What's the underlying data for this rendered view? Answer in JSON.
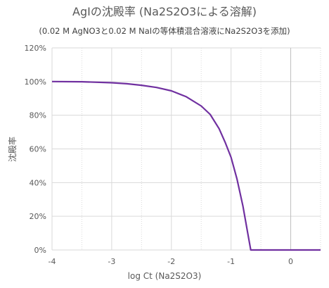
{
  "chart_data": {
    "type": "line",
    "title": "AgIの沈殿率 (Na2S2O3による溶解)",
    "subtitle": "(0.02 M AgNO3と0.02 M NaIの等体積混合溶液にNa2S2O3を添加)",
    "xlabel": "log Ct (Na2S2O3)",
    "ylabel": "沈殿率",
    "xlim": [
      -4,
      0.5
    ],
    "ylim": [
      0,
      120
    ],
    "x_ticks": [
      -4,
      -3,
      -2,
      -1,
      0
    ],
    "x_tick_labels": [
      "-4",
      "-3",
      "-2",
      "-1",
      "0"
    ],
    "y_ticks": [
      0,
      20,
      40,
      60,
      80,
      100,
      120
    ],
    "y_tick_labels": [
      "0%",
      "20%",
      "40%",
      "60%",
      "80%",
      "100%",
      "120%"
    ],
    "grid": true,
    "legend": "none",
    "series": [
      {
        "color": "#7030a0",
        "x": [
          -4.0,
          -3.5,
          -3.0,
          -2.75,
          -2.5,
          -2.25,
          -2.0,
          -1.75,
          -1.5,
          -1.35,
          -1.2,
          -1.1,
          -1.0,
          -0.9,
          -0.8,
          -0.72,
          -0.67,
          -0.5,
          -0.25,
          0.0,
          0.25,
          0.5
        ],
        "y": [
          100,
          99.9,
          99.3,
          98.7,
          97.8,
          96.5,
          94.5,
          91,
          85.5,
          80.5,
          72,
          64,
          55,
          42,
          26,
          10,
          0,
          0,
          0,
          0,
          0,
          0
        ]
      }
    ]
  }
}
